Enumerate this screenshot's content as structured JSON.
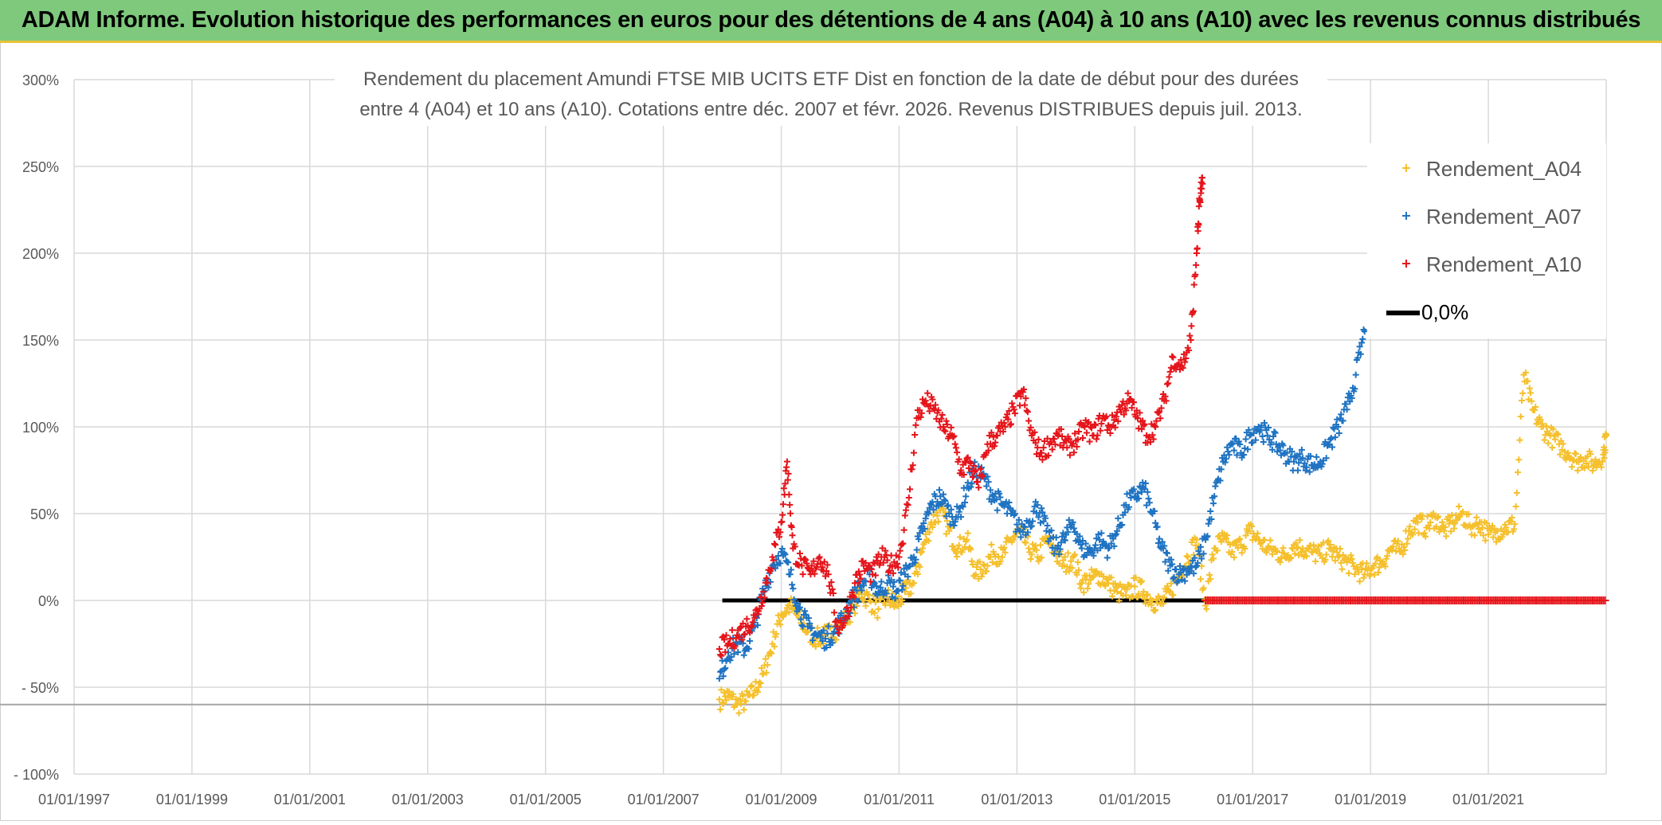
{
  "banner": {
    "title": "ADAM Informe. Evolution historique des performances en euros pour des détentions de 4 ans (A04) à 10 ans (A10) avec les revenus connus distribués"
  },
  "chart_data": {
    "type": "scatter",
    "title_line1": "Rendement du placement Amundi FTSE MIB UCITS ETF Dist en fonction de la date de début pour des durées",
    "title_line2": "entre 4 (A04) et 10 ans (A10). Cotations entre déc. 2007 et févr. 2026. Revenus DISTRIBUES depuis juil. 2013.",
    "xlabel": "",
    "ylabel": "",
    "x_range": [
      1997.0,
      2023.0
    ],
    "ylim": [
      -100,
      300
    ],
    "y_ticks": [
      {
        "value": 300,
        "label": "300%"
      },
      {
        "value": 250,
        "label": "250%"
      },
      {
        "value": 200,
        "label": "200%"
      },
      {
        "value": 150,
        "label": "150%"
      },
      {
        "value": 100,
        "label": "100%"
      },
      {
        "value": 50,
        "label": "50%"
      },
      {
        "value": 0,
        "label": "0%"
      },
      {
        "value": -50,
        "label": "- 50%"
      },
      {
        "value": -100,
        "label": "- 100%"
      }
    ],
    "x_ticks": [
      {
        "value": 1997,
        "label": "01/01/1997"
      },
      {
        "value": 1999,
        "label": "01/01/1999"
      },
      {
        "value": 2001,
        "label": "01/01/2001"
      },
      {
        "value": 2003,
        "label": "01/01/2003"
      },
      {
        "value": 2005,
        "label": "01/01/2005"
      },
      {
        "value": 2007,
        "label": "01/01/2007"
      },
      {
        "value": 2009,
        "label": "01/01/2009"
      },
      {
        "value": 2011,
        "label": "01/01/2011"
      },
      {
        "value": 2013,
        "label": "01/01/2013"
      },
      {
        "value": 2015,
        "label": "01/01/2015"
      },
      {
        "value": 2017,
        "label": "01/01/2017"
      },
      {
        "value": 2019,
        "label": "01/01/2019"
      },
      {
        "value": 2021,
        "label": "01/01/2021"
      }
    ],
    "reference_line_y": -60,
    "legend_position": "top-right",
    "series": [
      {
        "name": "Rendement_A04",
        "color": "#f5c02c",
        "x": [
          2007.95,
          2008.1,
          2008.25,
          2008.4,
          2008.55,
          2008.7,
          2008.85,
          2009.0,
          2009.15,
          2009.3,
          2009.45,
          2009.6,
          2009.75,
          2009.9,
          2010.05,
          2010.2,
          2010.35,
          2010.5,
          2010.65,
          2010.8,
          2010.95,
          2011.1,
          2011.25,
          2011.4,
          2011.55,
          2011.7,
          2011.85,
          2012.0,
          2012.15,
          2012.3,
          2012.45,
          2012.6,
          2012.75,
          2012.9,
          2013.05,
          2013.2,
          2013.35,
          2013.5,
          2013.65,
          2013.8,
          2013.95,
          2014.1,
          2014.25,
          2014.4,
          2014.55,
          2014.7,
          2014.85,
          2015.0,
          2015.15,
          2015.3,
          2015.45,
          2015.6,
          2015.75,
          2015.9,
          2016.05,
          2016.2,
          2016.35,
          2016.5,
          2016.65,
          2016.8,
          2016.95,
          2017.1,
          2017.25,
          2017.4,
          2017.55,
          2017.7,
          2017.85,
          2018.0,
          2018.15,
          2018.3,
          2018.45,
          2018.6,
          2018.75,
          2018.9,
          2019.05,
          2019.2,
          2019.35,
          2019.5,
          2019.65,
          2019.8,
          2019.95,
          2020.1,
          2020.25,
          2020.4,
          2020.55,
          2020.7,
          2020.85,
          2021.0,
          2021.15,
          2021.3,
          2021.45,
          2021.6,
          2021.75,
          2021.9,
          2022.05,
          2022.2,
          2022.35,
          2022.5,
          2022.65,
          2022.8,
          2022.95,
          2023.0
        ],
        "y": [
          -57,
          -55,
          -60,
          -58,
          -52,
          -42,
          -25,
          -8,
          -3,
          -10,
          -18,
          -22,
          -20,
          -18,
          -12,
          -5,
          5,
          0,
          -5,
          2,
          -3,
          5,
          10,
          30,
          45,
          52,
          40,
          30,
          35,
          15,
          20,
          28,
          25,
          35,
          40,
          30,
          25,
          35,
          28,
          20,
          25,
          10,
          12,
          15,
          10,
          5,
          3,
          8,
          5,
          0,
          -2,
          5,
          15,
          25,
          35,
          -3,
          30,
          35,
          28,
          32,
          40,
          35,
          30,
          28,
          25,
          32,
          30,
          28,
          26,
          30,
          25,
          22,
          18,
          15,
          20,
          22,
          30,
          28,
          40,
          45,
          42,
          48,
          40,
          45,
          50,
          42,
          45,
          38,
          40,
          42,
          44,
          130,
          110,
          100,
          95,
          90,
          85,
          80,
          82,
          78,
          84,
          95
        ],
        "y_tail_note": ""
      },
      {
        "name": "Rendement_A07",
        "color": "#1f73c2",
        "x": [
          2007.95,
          2008.1,
          2008.25,
          2008.4,
          2008.55,
          2008.7,
          2008.85,
          2009.0,
          2009.15,
          2009.3,
          2009.45,
          2009.6,
          2009.75,
          2009.9,
          2010.05,
          2010.2,
          2010.35,
          2010.5,
          2010.65,
          2010.8,
          2010.95,
          2011.1,
          2011.25,
          2011.4,
          2011.55,
          2011.7,
          2011.85,
          2012.0,
          2012.15,
          2012.3,
          2012.45,
          2012.6,
          2012.75,
          2012.9,
          2013.05,
          2013.2,
          2013.35,
          2013.5,
          2013.65,
          2013.8,
          2013.95,
          2014.1,
          2014.25,
          2014.4,
          2014.55,
          2014.7,
          2014.85,
          2015.0,
          2015.15,
          2015.3,
          2015.45,
          2015.6,
          2015.75,
          2015.9,
          2016.05,
          2016.2,
          2016.35,
          2016.5,
          2016.65,
          2016.8,
          2016.95,
          2017.1,
          2017.25,
          2017.4,
          2017.55,
          2017.7,
          2017.85,
          2018.0,
          2018.15,
          2018.3,
          2018.45,
          2018.6,
          2018.75,
          2018.9
        ],
        "y": [
          -45,
          -30,
          -25,
          -28,
          -15,
          5,
          20,
          28,
          15,
          -5,
          -15,
          -20,
          -22,
          -18,
          -10,
          0,
          8,
          15,
          5,
          10,
          5,
          15,
          25,
          40,
          55,
          60,
          50,
          48,
          65,
          75,
          70,
          60,
          55,
          50,
          40,
          45,
          55,
          40,
          30,
          35,
          45,
          30,
          28,
          35,
          30,
          40,
          55,
          60,
          65,
          50,
          30,
          20,
          15,
          18,
          20,
          35,
          60,
          80,
          90,
          85,
          95,
          100,
          95,
          90,
          85,
          80,
          82,
          78,
          80,
          90,
          100,
          110,
          130,
          155
        ],
        "y_tail_note": ""
      },
      {
        "name": "Rendement_A10",
        "color": "#e5151b",
        "x": [
          2007.95,
          2008.1,
          2008.25,
          2008.4,
          2008.55,
          2008.7,
          2008.85,
          2009.0,
          2009.1,
          2009.2,
          2009.35,
          2009.5,
          2009.65,
          2009.8,
          2009.95,
          2010.1,
          2010.25,
          2010.4,
          2010.55,
          2010.7,
          2010.85,
          2011.0,
          2011.15,
          2011.3,
          2011.45,
          2011.6,
          2011.75,
          2011.9,
          2012.05,
          2012.2,
          2012.35,
          2012.5,
          2012.65,
          2012.8,
          2012.95,
          2013.1,
          2013.25,
          2013.4,
          2013.55,
          2013.7,
          2013.85,
          2014.0,
          2014.15,
          2014.3,
          2014.45,
          2014.6,
          2014.75,
          2014.9,
          2015.05,
          2015.2,
          2015.35,
          2015.5,
          2015.65,
          2015.8,
          2015.95,
          2016.05,
          2016.1,
          2016.15
        ],
        "y": [
          -28,
          -25,
          -20,
          -15,
          -10,
          5,
          25,
          45,
          80,
          30,
          20,
          15,
          25,
          15,
          -15,
          -10,
          10,
          20,
          15,
          25,
          20,
          25,
          55,
          105,
          115,
          110,
          100,
          95,
          75,
          80,
          65,
          90,
          95,
          100,
          110,
          120,
          95,
          85,
          90,
          95,
          88,
          92,
          100,
          95,
          105,
          100,
          110,
          115,
          105,
          95,
          100,
          115,
          140,
          135,
          150,
          200,
          230,
          240
        ],
        "y_tail_note": "A10 values are 0% from 2016.2 to 2023.0"
      }
    ],
    "zero_series": {
      "name": "0,0%",
      "color": "#000000",
      "x_start": 2008.0,
      "x_end": 2016.2,
      "y": 0
    },
    "red_zero_band": {
      "x_start": 2016.2,
      "x_end": 2023.0,
      "y": 0
    }
  }
}
